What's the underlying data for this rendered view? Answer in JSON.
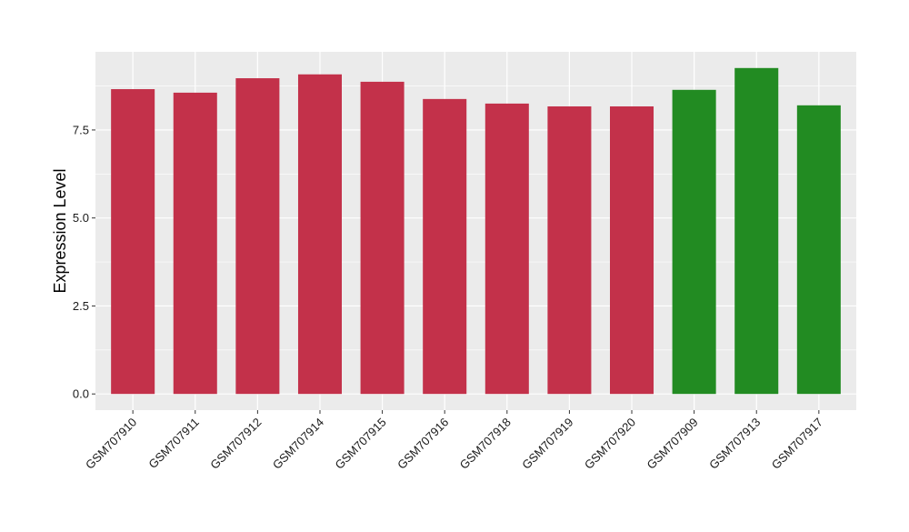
{
  "chart_data": {
    "type": "bar",
    "title": "",
    "xlabel": "",
    "ylabel": "Expression Level",
    "categories": [
      "GSM707910",
      "GSM707911",
      "GSM707912",
      "GSM707914",
      "GSM707915",
      "GSM707916",
      "GSM707918",
      "GSM707919",
      "GSM707920",
      "GSM707909",
      "GSM707913",
      "GSM707917"
    ],
    "values": [
      8.66,
      8.56,
      8.97,
      9.08,
      8.87,
      8.38,
      8.25,
      8.17,
      8.17,
      8.64,
      9.26,
      8.2
    ],
    "bar_colors": [
      "#c3314a",
      "#c3314a",
      "#c3314a",
      "#c3314a",
      "#c3314a",
      "#c3314a",
      "#c3314a",
      "#c3314a",
      "#c3314a",
      "#228b22",
      "#228b22",
      "#228b22"
    ],
    "yticks": [
      0,
      2.5,
      5,
      7.5
    ],
    "ytick_labels": [
      "0.0",
      "2.5",
      "5.0",
      "7.5"
    ],
    "ylim": [
      -0.46,
      9.72
    ],
    "grid": true,
    "panel_background": "#ebebeb"
  }
}
